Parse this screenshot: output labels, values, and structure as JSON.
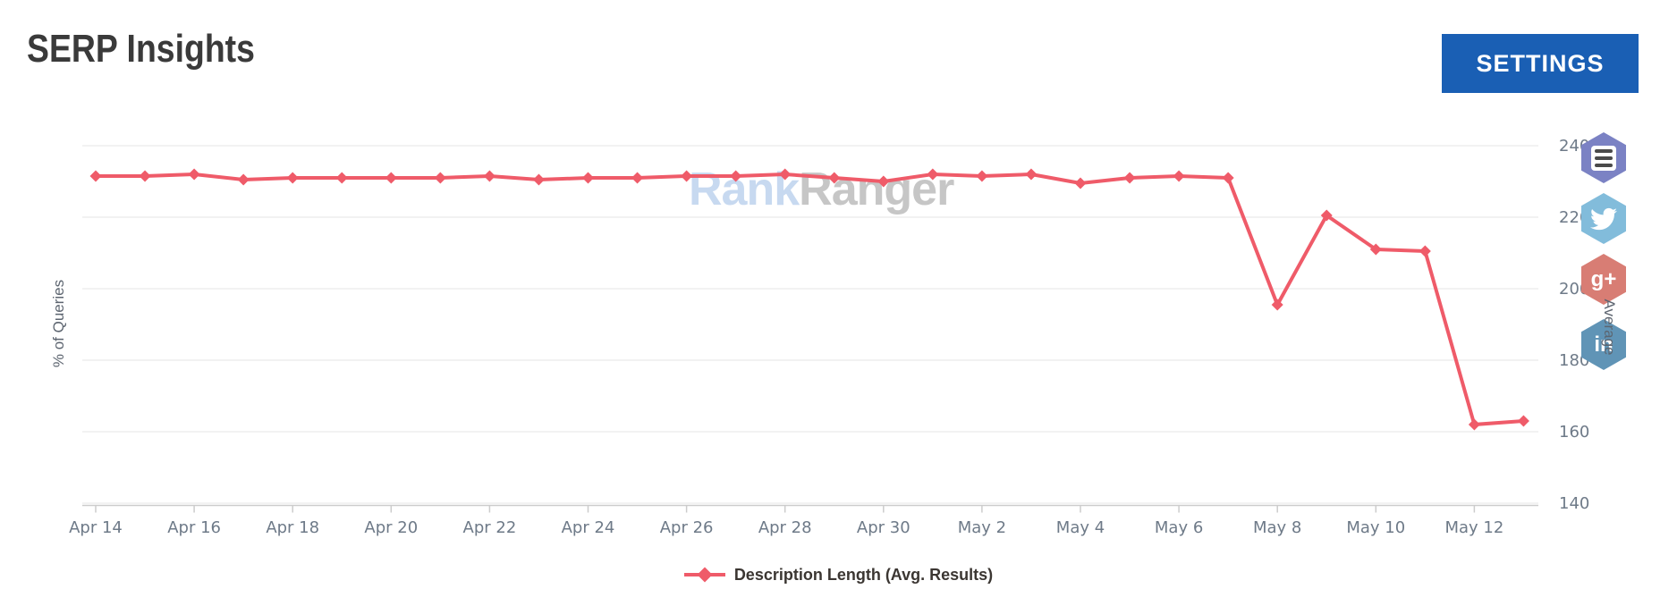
{
  "header": {
    "title": "SERP Insights",
    "settings_label": "SETTINGS"
  },
  "watermark": {
    "part1": "Rank",
    "part2": "Ranger"
  },
  "legend": {
    "label": "Description Length (Avg. Results)"
  },
  "axes": {
    "left_title": "% of Queries",
    "right_title": "Average"
  },
  "share_icons": [
    {
      "name": "list-doc",
      "color": "#7b82c4",
      "glyph": ""
    },
    {
      "name": "twitter",
      "color": "#82bcdb",
      "glyph": ""
    },
    {
      "name": "google-plus",
      "color": "#d87d74",
      "glyph": "g+"
    },
    {
      "name": "linkedin",
      "color": "#6094b6",
      "glyph": "in"
    }
  ],
  "colors": {
    "settings_button": "#1a5fb4",
    "line": "#ef5b69",
    "grid": "#e6e6e6",
    "axis": "#cccccc",
    "tick_label": "#6e7a88",
    "title": "#3a3a3a",
    "watermark_blue": "#c7d9f0",
    "watermark_gray": "#c6c6c6"
  },
  "chart_data": {
    "type": "line",
    "title": "SERP Insights",
    "x": [
      "Apr 14",
      "Apr 15",
      "Apr 16",
      "Apr 17",
      "Apr 18",
      "Apr 19",
      "Apr 20",
      "Apr 21",
      "Apr 22",
      "Apr 23",
      "Apr 24",
      "Apr 25",
      "Apr 26",
      "Apr 27",
      "Apr 28",
      "Apr 29",
      "Apr 30",
      "May 1",
      "May 2",
      "May 3",
      "May 4",
      "May 5",
      "May 6",
      "May 7",
      "May 8",
      "May 9",
      "May 10",
      "May 11",
      "May 12",
      "May 13"
    ],
    "series": [
      {
        "name": "Description Length (Avg. Results)",
        "color": "#ef5b69",
        "marker": "diamond",
        "values": [
          231.5,
          231.5,
          232,
          230.5,
          231,
          231,
          231,
          231,
          231.5,
          230.5,
          231,
          231,
          231.5,
          231.5,
          232,
          231,
          230,
          232,
          231.5,
          232,
          229.5,
          231,
          231.5,
          231,
          195.5,
          220.5,
          211,
          210.5,
          162,
          163
        ]
      }
    ],
    "xtick_labels": [
      "Apr 14",
      "Apr 16",
      "Apr 18",
      "Apr 20",
      "Apr 22",
      "Apr 24",
      "Apr 26",
      "Apr 28",
      "Apr 30",
      "May 2",
      "May 4",
      "May 6",
      "May 8",
      "May 10",
      "May 12"
    ],
    "yticks": [
      140,
      160,
      180,
      200,
      220,
      240
    ],
    "ylim": [
      140,
      240
    ],
    "yaxis_side": "right",
    "ylabel_left": "% of Queries",
    "ylabel_right": "Average",
    "grid": "horizontal",
    "legend_position": "bottom"
  }
}
